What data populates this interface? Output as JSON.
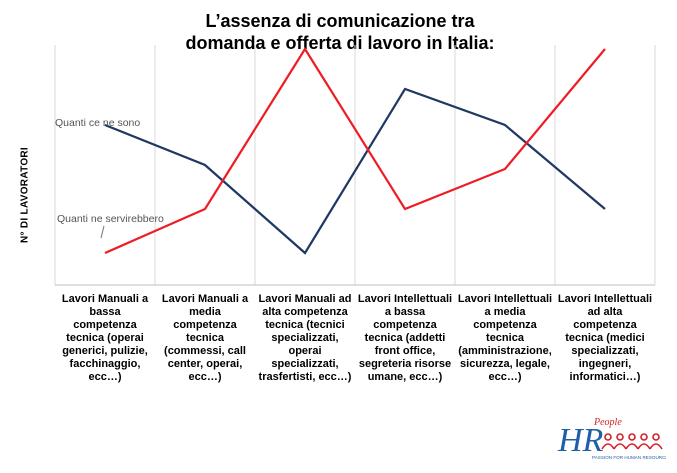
{
  "chart_data": {
    "type": "line",
    "title_lines": [
      "L’assenza di comunicazione tra",
      "domanda e offerta di lavoro in Italia:"
    ],
    "ylabel": "N° DI LAVORATORI",
    "categories": [
      [
        "Lavori Manuali a",
        "bassa",
        "competenza",
        "tecnica (operai",
        "generici, pulizie,",
        "facchinaggio,",
        "ecc…)"
      ],
      [
        "Lavori Manuali a",
        "media",
        "competenza",
        "tecnica",
        "(commessi, call",
        "center, operai,",
        "ecc…)"
      ],
      [
        "Lavori Manuali ad",
        "alta competenza",
        "tecnica (tecnici",
        "specializzati,",
        "operai",
        "specializzati,",
        "trasfertisti, ecc…)"
      ],
      [
        "Lavori Intellettuali",
        "a bassa",
        "competenza",
        "tecnica (addetti",
        "front office,",
        "segreteria risorse",
        "umane, ecc…)"
      ],
      [
        "Lavori Intellettuali",
        "a media",
        "competenza",
        "tecnica",
        "(amministrazione,",
        "sicurezza, legale,",
        "ecc…)"
      ],
      [
        "Lavori Intellettuali",
        "ad alta",
        "competenza",
        "tecnica (medici",
        "specializzati,",
        "ingegneri,",
        "informatici…)"
      ]
    ],
    "ylim": [
      0,
      6
    ],
    "grid": "vertical",
    "series": [
      {
        "name": "Quanti ce ne sono",
        "color": "#1f3864",
        "values": [
          4,
          3,
          0.8,
          4.9,
          4,
          1.9
        ]
      },
      {
        "name": "Quanti ne servirebbero",
        "color": "#ee1c25",
        "values": [
          0.8,
          1.9,
          5.9,
          1.9,
          2.9,
          5.9
        ]
      }
    ]
  },
  "logo": {
    "main": "HR",
    "sup": "People",
    "tagline": "PASSION FOR HUMAN RESOURCES",
    "icon": "people-icon"
  }
}
